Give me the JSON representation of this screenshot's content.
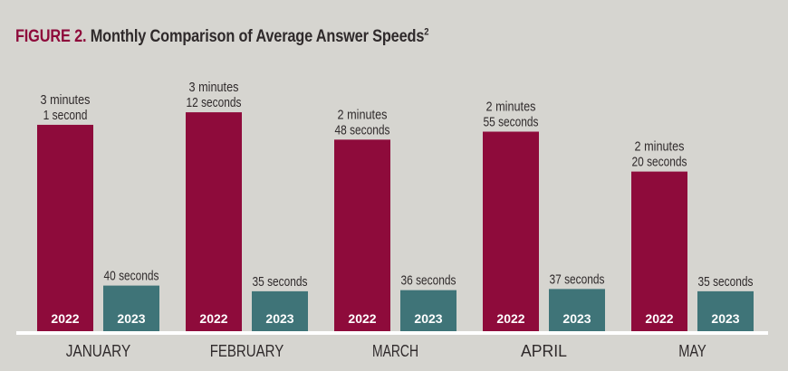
{
  "title": {
    "figure_label": "FIGURE 2.",
    "text": "Monthly Comparison of Average Answer Speeds",
    "superscript": "2"
  },
  "colors": {
    "series_2022": "#8e0b3b",
    "series_2023": "#3f7478",
    "background": "#d6d5d0",
    "title_accent": "#8e0b3b",
    "baseline": "#ffffff",
    "text": "#2f2a2b"
  },
  "chart_data": {
    "type": "bar",
    "title": "FIGURE 2. Monthly Comparison of Average Answer Speeds",
    "categories": [
      "JANUARY",
      "FEBRUARY",
      "MARCH",
      "APRIL",
      "MAY"
    ],
    "xlabel": "",
    "ylabel": "",
    "unit": "seconds",
    "ylim": [
      0,
      200
    ],
    "grid": false,
    "legend": "none",
    "series": [
      {
        "name": "2022",
        "values": [
          181,
          192,
          168,
          175,
          140
        ],
        "labels": [
          [
            "3 minutes",
            "1 second"
          ],
          [
            "3 minutes",
            "12 seconds"
          ],
          [
            "2 minutes",
            "48 seconds"
          ],
          [
            "2 minutes",
            "55 seconds"
          ],
          [
            "2 minutes",
            "20 seconds"
          ]
        ]
      },
      {
        "name": "2023",
        "values": [
          40,
          35,
          36,
          37,
          35
        ],
        "labels": [
          [
            "40 seconds"
          ],
          [
            "35 seconds"
          ],
          [
            "36 seconds"
          ],
          [
            "37 seconds"
          ],
          [
            "35 seconds"
          ]
        ]
      }
    ]
  }
}
